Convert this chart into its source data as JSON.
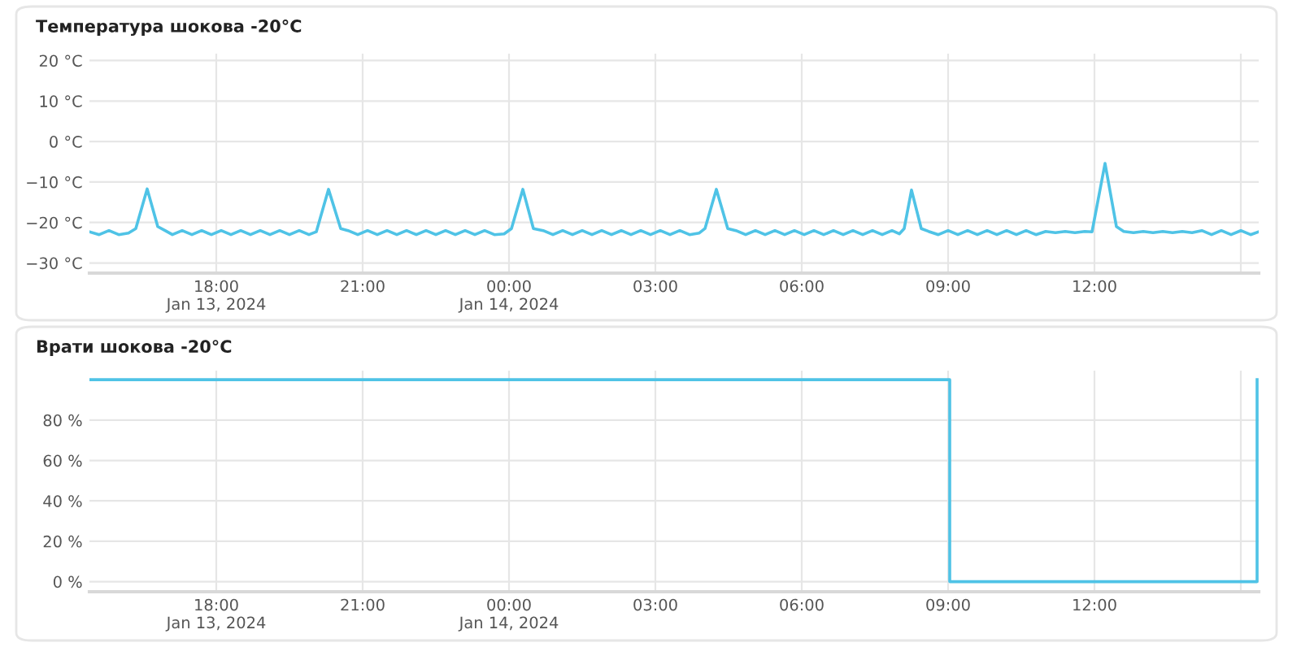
{
  "chart_data": [
    {
      "type": "line",
      "title": "Температура шокова -20°C",
      "color": "#4fc3e6",
      "grid": true,
      "legend": false,
      "xlim": [
        "2024-01-13T15:24",
        "2024-01-14T15:22"
      ],
      "ylim": [
        -32.5,
        21.7
      ],
      "xticks": [
        {
          "value": "2024-01-13T18:00",
          "label": "18:00\nJan 13, 2024"
        },
        {
          "value": "2024-01-13T21:00",
          "label": "21:00"
        },
        {
          "value": "2024-01-14T00:00",
          "label": "00:00\nJan 14, 2024"
        },
        {
          "value": "2024-01-14T03:00",
          "label": "03:00"
        },
        {
          "value": "2024-01-14T06:00",
          "label": "06:00"
        },
        {
          "value": "2024-01-14T09:00",
          "label": "09:00"
        },
        {
          "value": "2024-01-14T12:00",
          "label": "12:00"
        },
        {
          "value": "2024-01-14T15:00",
          "label": null
        }
      ],
      "yticks": [
        {
          "value": -30,
          "label": "−30 °C"
        },
        {
          "value": -20,
          "label": "−20 °C"
        },
        {
          "value": -10,
          "label": "−10 °C"
        },
        {
          "value": 0,
          "label": "0 °C"
        },
        {
          "value": 10,
          "label": "10 °C"
        },
        {
          "value": 20,
          "label": "20 °C"
        }
      ],
      "x": [
        "2024-01-13T15:24",
        "2024-01-13T15:36",
        "2024-01-13T15:48",
        "2024-01-13T16:00",
        "2024-01-13T16:12",
        "2024-01-13T16:21",
        "2024-01-13T16:35",
        "2024-01-13T16:48",
        "2024-01-13T16:57",
        "2024-01-13T17:06",
        "2024-01-13T17:18",
        "2024-01-13T17:30",
        "2024-01-13T17:42",
        "2024-01-13T17:54",
        "2024-01-13T18:06",
        "2024-01-13T18:18",
        "2024-01-13T18:30",
        "2024-01-13T18:42",
        "2024-01-13T18:54",
        "2024-01-13T19:06",
        "2024-01-13T19:18",
        "2024-01-13T19:30",
        "2024-01-13T19:42",
        "2024-01-13T19:54",
        "2024-01-13T20:03",
        "2024-01-13T20:18",
        "2024-01-13T20:33",
        "2024-01-13T20:42",
        "2024-01-13T20:54",
        "2024-01-13T21:06",
        "2024-01-13T21:18",
        "2024-01-13T21:30",
        "2024-01-13T21:42",
        "2024-01-13T21:54",
        "2024-01-13T22:06",
        "2024-01-13T22:18",
        "2024-01-13T22:30",
        "2024-01-13T22:42",
        "2024-01-13T22:54",
        "2024-01-13T23:06",
        "2024-01-13T23:18",
        "2024-01-13T23:30",
        "2024-01-13T23:42",
        "2024-01-13T23:54",
        "2024-01-14T00:03",
        "2024-01-14T00:17",
        "2024-01-14T00:30",
        "2024-01-14T00:42",
        "2024-01-14T00:54",
        "2024-01-14T01:06",
        "2024-01-14T01:18",
        "2024-01-14T01:30",
        "2024-01-14T01:42",
        "2024-01-14T01:54",
        "2024-01-14T02:06",
        "2024-01-14T02:18",
        "2024-01-14T02:30",
        "2024-01-14T02:42",
        "2024-01-14T02:54",
        "2024-01-14T03:06",
        "2024-01-14T03:18",
        "2024-01-14T03:30",
        "2024-01-14T03:42",
        "2024-01-14T03:54",
        "2024-01-14T04:01",
        "2024-01-14T04:15",
        "2024-01-14T04:29",
        "2024-01-14T04:39",
        "2024-01-14T04:51",
        "2024-01-14T05:03",
        "2024-01-14T05:15",
        "2024-01-14T05:27",
        "2024-01-14T05:39",
        "2024-01-14T05:51",
        "2024-01-14T06:03",
        "2024-01-14T06:15",
        "2024-01-14T06:27",
        "2024-01-14T06:39",
        "2024-01-14T06:51",
        "2024-01-14T07:03",
        "2024-01-14T07:15",
        "2024-01-14T07:27",
        "2024-01-14T07:39",
        "2024-01-14T07:51",
        "2024-01-14T08:00",
        "2024-01-14T08:06",
        "2024-01-14T08:15",
        "2024-01-14T08:27",
        "2024-01-14T08:36",
        "2024-01-14T08:48",
        "2024-01-14T09:00",
        "2024-01-14T09:12",
        "2024-01-14T09:24",
        "2024-01-14T09:36",
        "2024-01-14T09:48",
        "2024-01-14T10:00",
        "2024-01-14T10:12",
        "2024-01-14T10:24",
        "2024-01-14T10:36",
        "2024-01-14T10:48",
        "2024-01-14T11:00",
        "2024-01-14T11:12",
        "2024-01-14T11:24",
        "2024-01-14T11:36",
        "2024-01-14T11:48",
        "2024-01-14T11:57",
        "2024-01-14T12:13",
        "2024-01-14T12:27",
        "2024-01-14T12:36",
        "2024-01-14T12:48",
        "2024-01-14T13:00",
        "2024-01-14T13:12",
        "2024-01-14T13:24",
        "2024-01-14T13:36",
        "2024-01-14T13:48",
        "2024-01-14T14:00",
        "2024-01-14T14:12",
        "2024-01-14T14:24",
        "2024-01-14T14:36",
        "2024-01-14T14:48",
        "2024-01-14T15:00",
        "2024-01-14T15:12",
        "2024-01-14T15:22"
      ],
      "values": [
        -22.3,
        -23.0,
        -22.0,
        -23.0,
        -22.6,
        -21.5,
        -11.7,
        -21.0,
        -22.0,
        -23.0,
        -22.0,
        -23.0,
        -22.0,
        -23.0,
        -22.0,
        -23.0,
        -22.0,
        -23.0,
        -22.0,
        -23.0,
        -22.0,
        -23.0,
        -22.0,
        -23.0,
        -22.3,
        -11.8,
        -21.5,
        -22.0,
        -23.0,
        -22.0,
        -23.0,
        -22.0,
        -23.0,
        -22.0,
        -23.0,
        -22.0,
        -23.0,
        -22.0,
        -23.0,
        -22.0,
        -23.0,
        -22.0,
        -23.0,
        -22.8,
        -21.5,
        -11.8,
        -21.5,
        -22.0,
        -23.0,
        -22.0,
        -23.0,
        -22.0,
        -23.0,
        -22.0,
        -23.0,
        -22.0,
        -23.0,
        -22.0,
        -23.0,
        -22.0,
        -23.0,
        -22.0,
        -23.0,
        -22.6,
        -21.5,
        -11.8,
        -21.5,
        -22.0,
        -23.0,
        -22.0,
        -23.0,
        -22.0,
        -23.0,
        -22.0,
        -23.0,
        -22.0,
        -23.0,
        -22.0,
        -23.0,
        -22.0,
        -23.0,
        -22.0,
        -23.0,
        -22.0,
        -22.8,
        -21.5,
        -12.0,
        -21.5,
        -22.2,
        -23.0,
        -22.0,
        -23.0,
        -22.0,
        -23.0,
        -22.0,
        -23.0,
        -22.0,
        -23.0,
        -22.0,
        -23.0,
        -22.2,
        -22.5,
        -22.2,
        -22.5,
        -22.2,
        -22.3,
        -5.4,
        -21.0,
        -22.2,
        -22.5,
        -22.2,
        -22.5,
        -22.2,
        -22.5,
        -22.2,
        -22.5,
        -22.0,
        -23.0,
        -22.0,
        -23.0,
        -22.0,
        -23.0,
        -22.3
      ]
    },
    {
      "type": "step",
      "title": "Врати шокова -20°C",
      "color": "#4fc3e6",
      "grid": true,
      "legend": false,
      "xlim": [
        "2024-01-13T15:24",
        "2024-01-14T15:22"
      ],
      "ylim": [
        -5,
        104.5
      ],
      "xticks": [
        {
          "value": "2024-01-13T18:00",
          "label": "18:00\nJan 13, 2024"
        },
        {
          "value": "2024-01-13T21:00",
          "label": "21:00"
        },
        {
          "value": "2024-01-14T00:00",
          "label": "00:00\nJan 14, 2024"
        },
        {
          "value": "2024-01-14T03:00",
          "label": "03:00"
        },
        {
          "value": "2024-01-14T06:00",
          "label": "06:00"
        },
        {
          "value": "2024-01-14T09:00",
          "label": "09:00"
        },
        {
          "value": "2024-01-14T12:00",
          "label": "12:00"
        },
        {
          "value": "2024-01-14T15:00",
          "label": null
        }
      ],
      "yticks": [
        {
          "value": 0,
          "label": "0 %"
        },
        {
          "value": 20,
          "label": "20 %"
        },
        {
          "value": 40,
          "label": "40 %"
        },
        {
          "value": 60,
          "label": "60 %"
        },
        {
          "value": 80,
          "label": "80 %"
        }
      ],
      "x": [
        "2024-01-13T15:24",
        "2024-01-14T09:02",
        "2024-01-14T15:20"
      ],
      "values": [
        100,
        0,
        100
      ]
    }
  ]
}
